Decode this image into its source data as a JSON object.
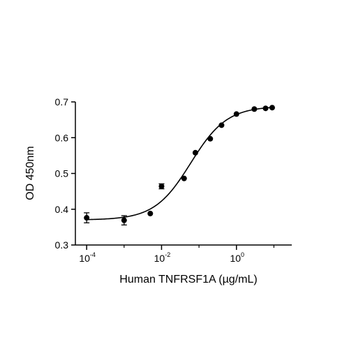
{
  "chart_data": {
    "type": "scatter",
    "title": "",
    "xlabel": "Human TNFRSF1A (µg/mL)",
    "ylabel": "OD 450nm",
    "xscale": "log10",
    "xlim": [
      5e-05,
      30
    ],
    "ylim": [
      0.3,
      0.7
    ],
    "grid": false,
    "legend": "none",
    "x_ticks": [
      {
        "base": "10",
        "exp": "-4",
        "value": 0.0001
      },
      {
        "base": "10",
        "exp": "-2",
        "value": 0.01
      },
      {
        "base": "10",
        "exp": "0",
        "value": 1
      }
    ],
    "y_ticks": [
      {
        "label": "0.3",
        "value": 0.3
      },
      {
        "label": "0.4",
        "value": 0.4
      },
      {
        "label": "0.5",
        "value": 0.5
      },
      {
        "label": "0.6",
        "value": 0.6
      },
      {
        "label": "0.7",
        "value": 0.7
      }
    ],
    "series": [
      {
        "marker_color": "#000000",
        "points": [
          {
            "x": 0.0001,
            "y": 0.376,
            "err": 0.014
          },
          {
            "x": 0.001,
            "y": 0.369,
            "err": 0.013
          },
          {
            "x": 0.005,
            "y": 0.388,
            "err": 0
          },
          {
            "x": 0.01,
            "y": 0.464,
            "err": 0.007
          },
          {
            "x": 0.04,
            "y": 0.486,
            "err": 0
          },
          {
            "x": 0.08,
            "y": 0.558,
            "err": 0
          },
          {
            "x": 0.2,
            "y": 0.597,
            "err": 0
          },
          {
            "x": 0.4,
            "y": 0.635,
            "err": 0
          },
          {
            "x": 1,
            "y": 0.666,
            "err": 0
          },
          {
            "x": 3,
            "y": 0.68,
            "err": 0
          },
          {
            "x": 6,
            "y": 0.682,
            "err": 0
          },
          {
            "x": 9,
            "y": 0.684,
            "err": 0
          }
        ],
        "fit": {
          "model": "4PL",
          "bottom": 0.37,
          "top": 0.688,
          "ec50": 0.06,
          "hill": 0.9,
          "color": "#000000"
        }
      }
    ]
  }
}
